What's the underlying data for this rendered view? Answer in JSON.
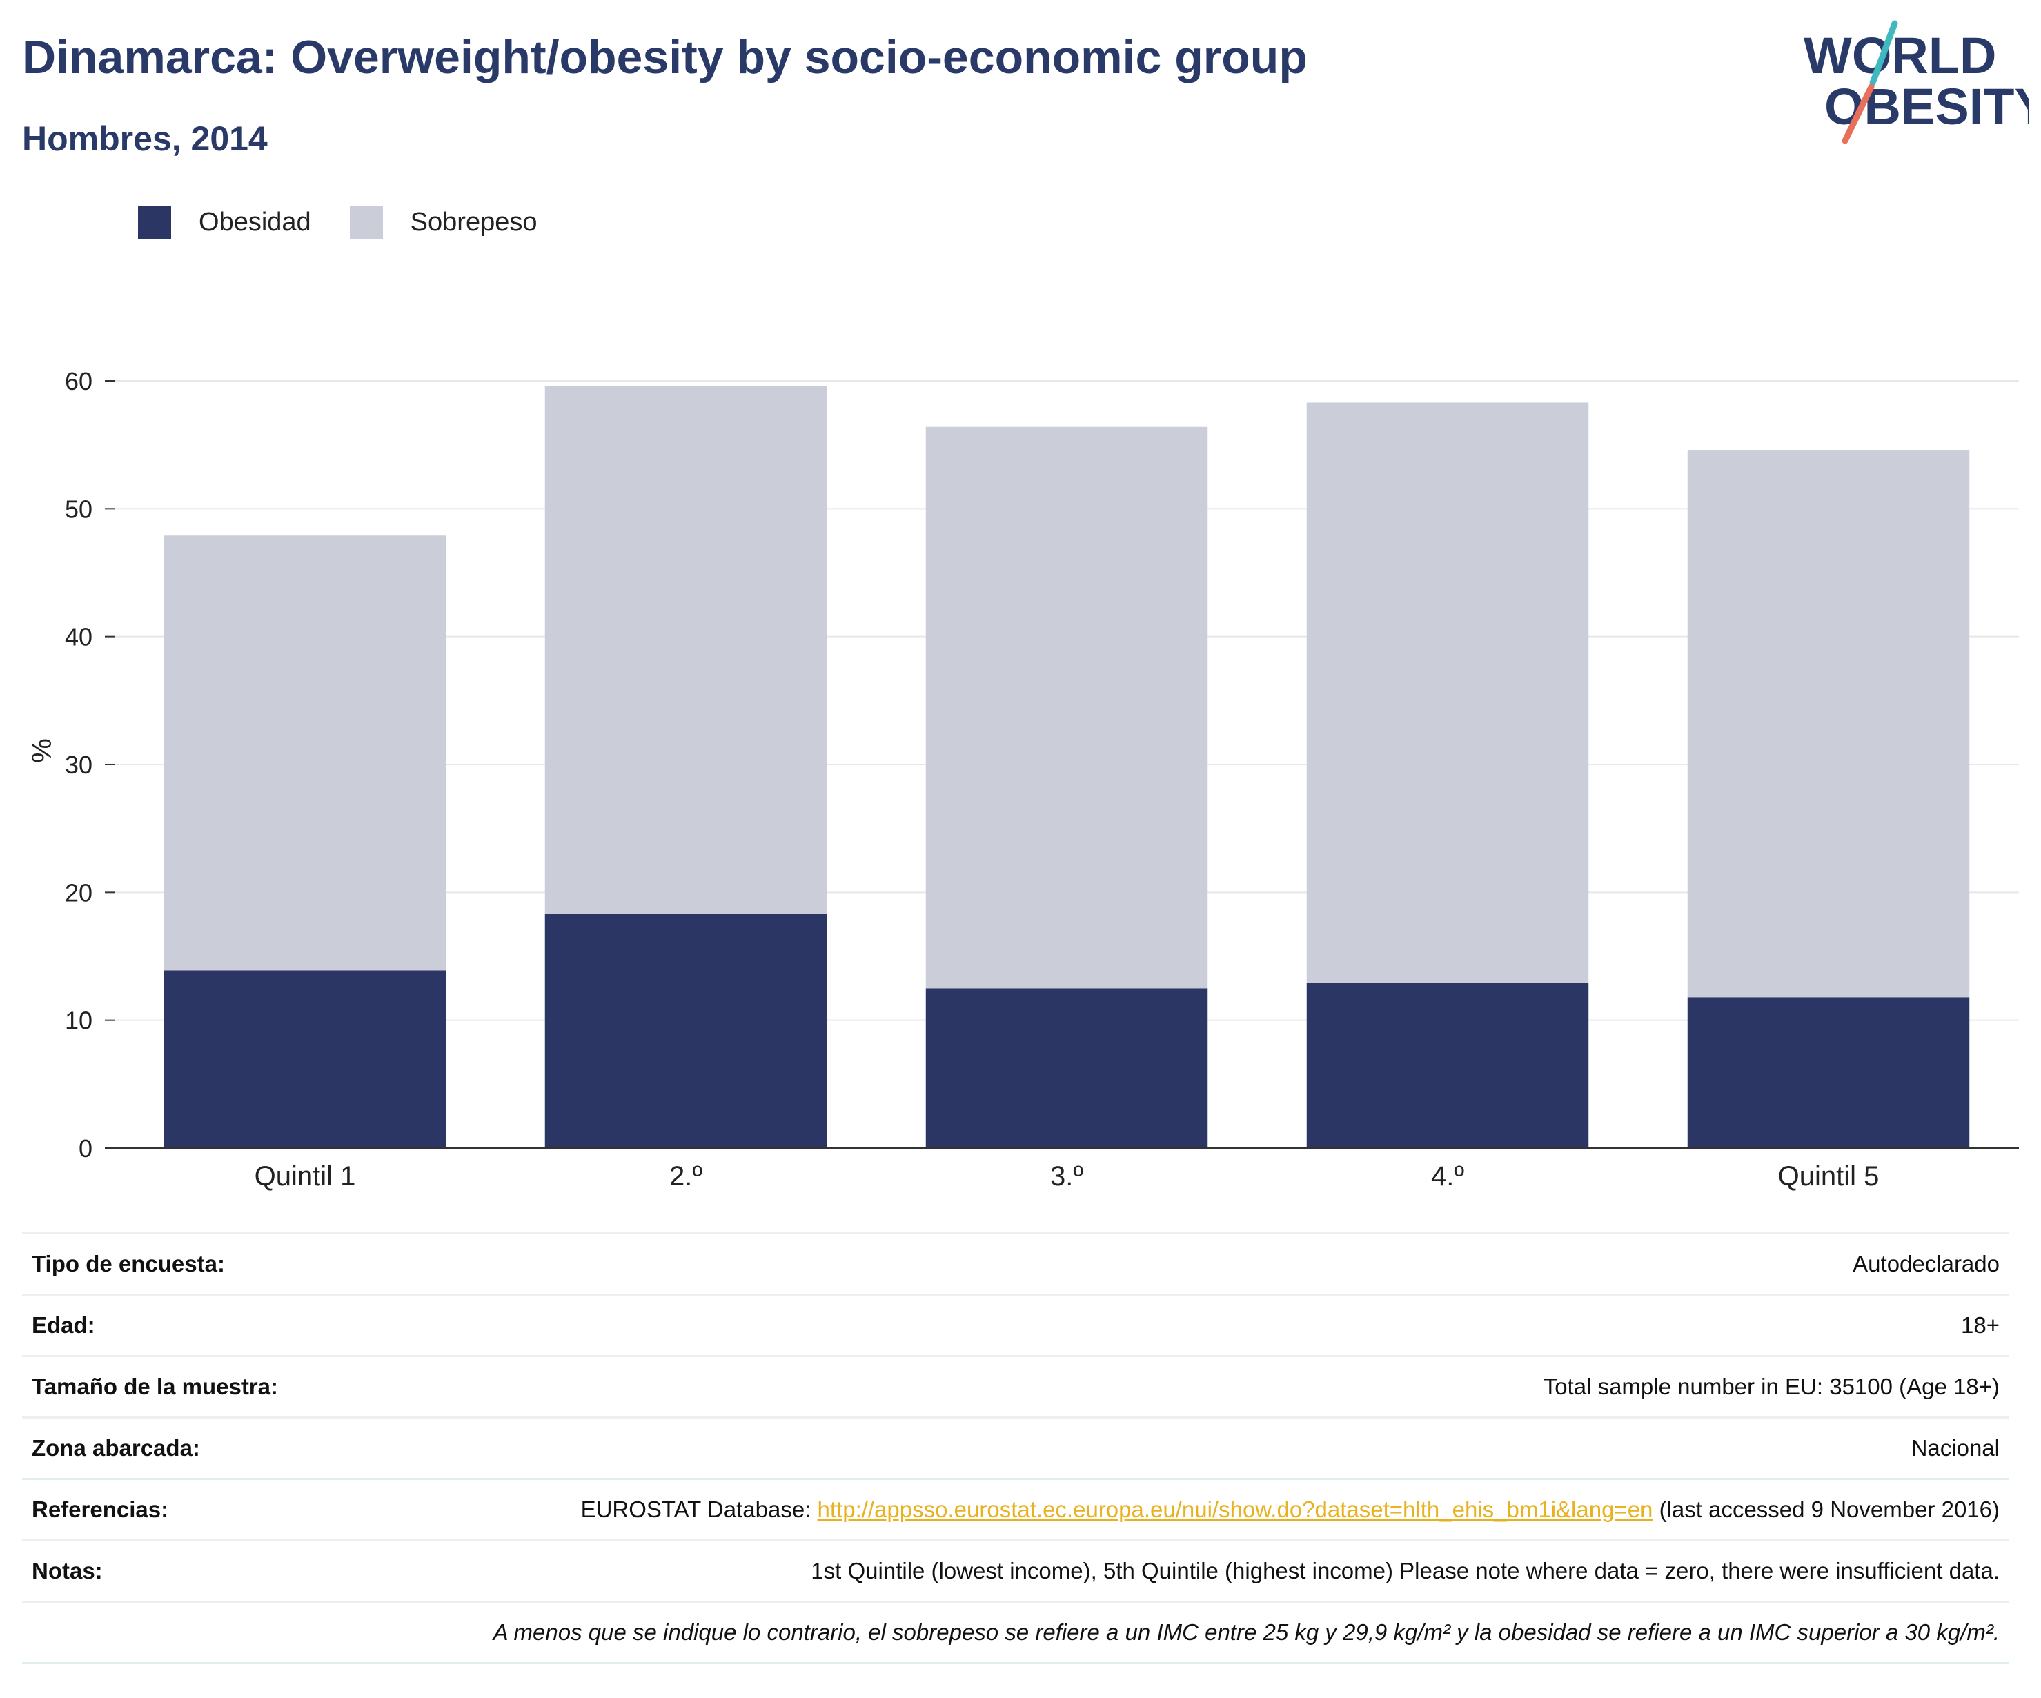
{
  "header": {
    "title": "Dinamarca: Overweight/obesity by socio-economic group",
    "subtitle": "Hombres, 2014"
  },
  "logo": {
    "line1": "WORLD",
    "line2": "OBESITY",
    "colors": {
      "text": "#2a3a68",
      "slash_top": "#3fb8c0",
      "slash_bottom": "#e8705a"
    }
  },
  "colors": {
    "obesidad": "#2b3664",
    "sobrepeso": "#cbcdd9",
    "grid": "#e8e8e8",
    "axis": "#333333"
  },
  "chart_data": {
    "type": "bar",
    "stacked": true,
    "categories": [
      "Quintil 1",
      "2.º",
      "3.º",
      "4.º",
      "Quintil 5"
    ],
    "series": [
      {
        "name": "Obesidad",
        "values": [
          13.9,
          18.3,
          12.5,
          12.9,
          11.8
        ]
      },
      {
        "name": "Sobrepeso",
        "values": [
          34.0,
          41.3,
          43.9,
          45.4,
          42.8
        ]
      }
    ],
    "ylabel": "%",
    "ylim": [
      0,
      60
    ],
    "yticks": [
      0,
      10,
      20,
      30,
      40,
      50,
      60
    ],
    "grid": true,
    "legend": "top-left"
  },
  "info": {
    "rows": [
      {
        "key": "Tipo de encuesta:",
        "value": "Autodeclarado"
      },
      {
        "key": "Edad:",
        "value": "18+"
      },
      {
        "key": "Tamaño de la muestra:",
        "value": "Total sample number in EU: 35100 (Age 18+)"
      },
      {
        "key": "Zona abarcada:",
        "value": "Nacional"
      }
    ],
    "references": {
      "key": "Referencias:",
      "prefix": "EUROSTAT Database: ",
      "link": "http://appsso.eurostat.ec.europa.eu/nui/show.do?dataset=hlth_ehis_bm1i&lang=en",
      "suffix": " (last accessed 9 November 2016)"
    },
    "notes": {
      "key": "Notas:",
      "value": "1st Quintile (lowest income), 5th Quintile (highest income) Please note where data = zero, there were insufficient data."
    },
    "footnote": "A menos que se indique lo contrario, el sobrepeso se refiere a un IMC entre 25 kg y 29,9 kg/m² y la obesidad se refiere a un IMC superior a 30 kg/m²."
  }
}
